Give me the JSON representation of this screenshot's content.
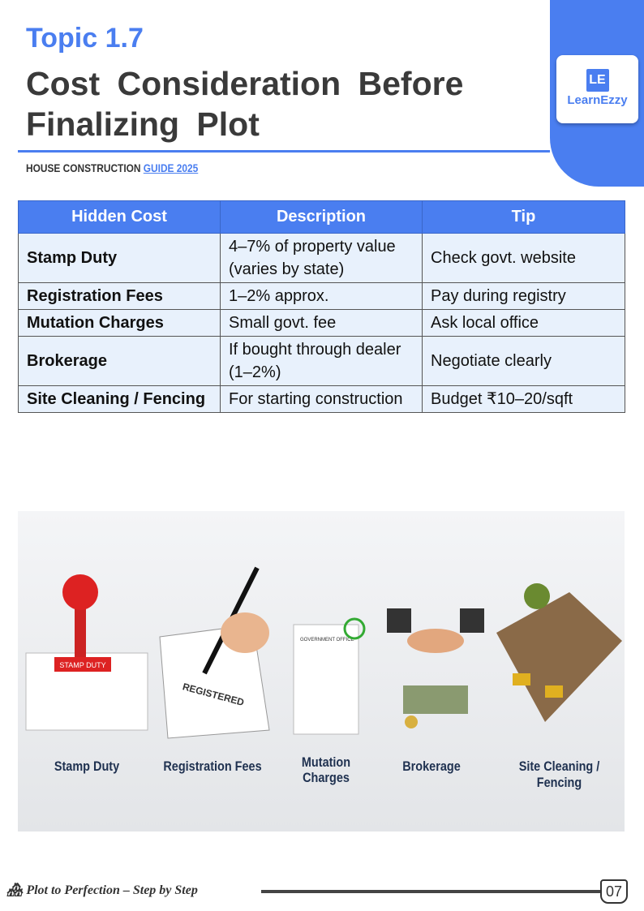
{
  "header": {
    "topic": "Topic 1.7",
    "title": "Cost Consideration Before Finalizing Plot",
    "subtitle_plain": "HOUSE CONSTRUCTION ",
    "subtitle_link": "GUIDE 2025",
    "logo_mark": "LE",
    "logo_name": "LearnEzzy",
    "accent": "#4a7ef0"
  },
  "table": {
    "headers": [
      "Hidden Cost",
      "Description",
      "Tip"
    ],
    "rows": [
      [
        "Stamp Duty",
        "4–7% of property value (varies by state)",
        "Check govt. website"
      ],
      [
        "Registration Fees",
        "1–2% approx.",
        "Pay during registry"
      ],
      [
        "Mutation Charges",
        "Small govt. fee",
        "Ask local office"
      ],
      [
        "Brokerage",
        "If bought through dealer (1–2%)",
        "Negotiate clearly"
      ],
      [
        "Site Cleaning / Fencing",
        "For starting construction",
        "Budget ₹10–20/sqft"
      ]
    ]
  },
  "illustration": {
    "labels": [
      "Stamp Duty",
      "Registration Fees",
      "Mutation Charges",
      "Brokerage",
      "Site Cleaning / Fencing"
    ],
    "stamp_text": "STAMP DUTY",
    "doc_stamp": "REGISTERED",
    "receipt_title": "GOVERNMENT OFFICE"
  },
  "footer": {
    "tagline": "Plot to Perfection – Step by Step",
    "page": "07"
  }
}
